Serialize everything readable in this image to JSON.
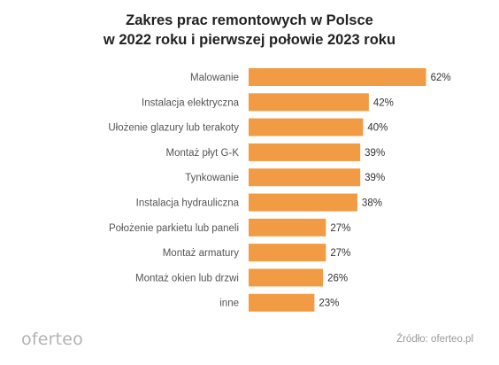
{
  "chart_data": {
    "type": "bar",
    "orientation": "horizontal",
    "title_line1": "Zakres prac remontowych w Polsce",
    "title_line2": "w 2022 roku i pierwszej połowie 2023 roku",
    "categories": [
      "Malowanie",
      "Instalacja elektryczna",
      "Ułożenie glazury lub terakoty",
      "Montaż płyt G-K",
      "Tynkowanie",
      "Instalacja hydrauliczna",
      "Położenie parkietu lub paneli",
      "Montaż armatury",
      "Montaż okien lub drzwi",
      "inne"
    ],
    "values": [
      62,
      42,
      40,
      39,
      39,
      38,
      27,
      27,
      26,
      23
    ],
    "value_labels": [
      "62%",
      "42%",
      "40%",
      "39%",
      "39%",
      "38%",
      "27%",
      "27%",
      "26%",
      "23%"
    ],
    "unit": "%",
    "bar_color": "#f29b45",
    "grid": false,
    "legend": "none"
  },
  "footer": {
    "logo": "oferteo",
    "source": "Źródło: oferteo.pl"
  }
}
